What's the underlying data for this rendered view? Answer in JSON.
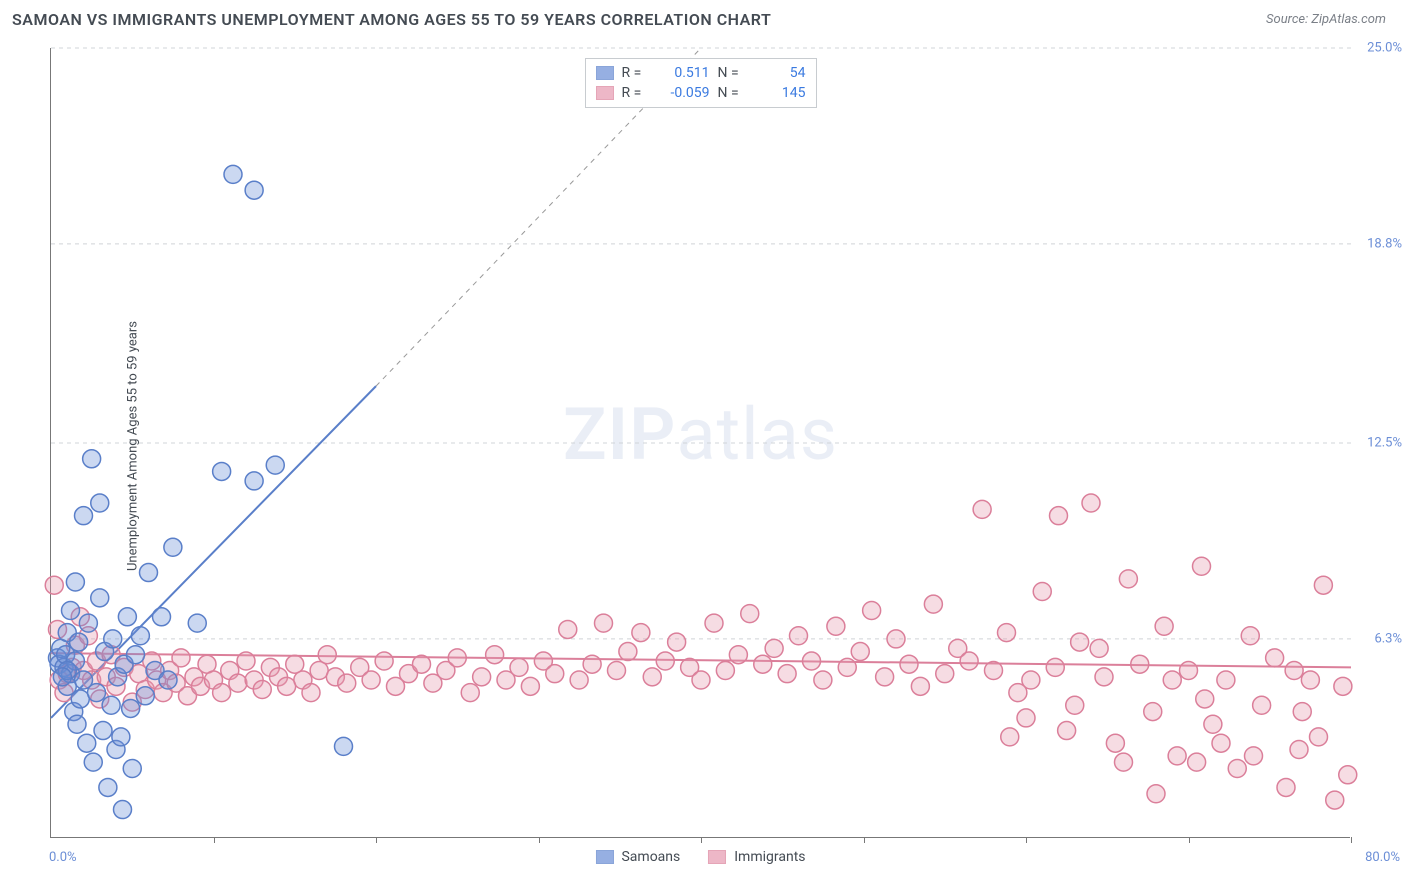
{
  "title": "SAMOAN VS IMMIGRANTS UNEMPLOYMENT AMONG AGES 55 TO 59 YEARS CORRELATION CHART",
  "source": "Source: ZipAtlas.com",
  "y_axis_label": "Unemployment Among Ages 55 to 59 years",
  "watermark": {
    "bold": "ZIP",
    "rest": "atlas"
  },
  "chart": {
    "type": "scatter",
    "xlim": [
      0,
      80
    ],
    "ylim": [
      0,
      25
    ],
    "x_ticks": [
      10,
      20,
      30,
      40,
      50,
      60,
      70,
      80
    ],
    "y_ticks": [
      6.3,
      12.5,
      18.8,
      25.0
    ],
    "y_tick_labels": [
      "6.3%",
      "12.5%",
      "18.8%",
      "25.0%"
    ],
    "xlim_labels": [
      "0.0%",
      "80.0%"
    ],
    "grid_color": "#d0d4d8",
    "background_color": "#ffffff",
    "axis_color": "#777777",
    "tick_label_color": "#6b8ed6",
    "marker_radius": 9,
    "marker_stroke_width": 1.5,
    "marker_fill_opacity": 0.35,
    "trend_line_width": 2,
    "trend_dash_width": 1,
    "series": [
      {
        "name": "Samoans",
        "color": "#6b8ed6",
        "stroke": "#5a7fc9",
        "R": "0.511",
        "N": "54",
        "trend": {
          "x1": 0,
          "y1": 3.8,
          "x2": 20,
          "y2": 14.3,
          "dash_x2": 40,
          "dash_y2": 25.0
        },
        "points": [
          [
            0.4,
            5.7
          ],
          [
            0.5,
            5.5
          ],
          [
            0.6,
            6.0
          ],
          [
            0.8,
            5.4
          ],
          [
            0.9,
            5.8
          ],
          [
            1.0,
            4.8
          ],
          [
            1.0,
            6.5
          ],
          [
            1.2,
            5.2
          ],
          [
            1.2,
            7.2
          ],
          [
            1.4,
            4.0
          ],
          [
            1.5,
            5.6
          ],
          [
            1.5,
            8.1
          ],
          [
            1.6,
            3.6
          ],
          [
            1.7,
            6.2
          ],
          [
            1.8,
            4.4
          ],
          [
            2.0,
            5.0
          ],
          [
            2.0,
            10.2
          ],
          [
            2.2,
            3.0
          ],
          [
            2.3,
            6.8
          ],
          [
            2.5,
            12.0
          ],
          [
            2.6,
            2.4
          ],
          [
            2.8,
            4.6
          ],
          [
            3.0,
            7.6
          ],
          [
            3.0,
            10.6
          ],
          [
            3.2,
            3.4
          ],
          [
            3.3,
            5.9
          ],
          [
            3.5,
            1.6
          ],
          [
            3.7,
            4.2
          ],
          [
            3.8,
            6.3
          ],
          [
            4.0,
            2.8
          ],
          [
            4.1,
            5.1
          ],
          [
            4.3,
            3.2
          ],
          [
            4.4,
            0.9
          ],
          [
            4.5,
            5.5
          ],
          [
            4.7,
            7.0
          ],
          [
            4.9,
            4.1
          ],
          [
            5.0,
            2.2
          ],
          [
            5.2,
            5.8
          ],
          [
            5.5,
            6.4
          ],
          [
            5.8,
            4.5
          ],
          [
            6.0,
            8.4
          ],
          [
            6.4,
            5.3
          ],
          [
            6.8,
            7.0
          ],
          [
            7.2,
            5.0
          ],
          [
            7.5,
            9.2
          ],
          [
            9.0,
            6.8
          ],
          [
            10.5,
            11.6
          ],
          [
            11.2,
            21.0
          ],
          [
            12.5,
            20.5
          ],
          [
            12.5,
            11.3
          ],
          [
            13.8,
            11.8
          ],
          [
            18.0,
            2.9
          ],
          [
            1.0,
            5.3
          ],
          [
            0.7,
            5.1
          ]
        ]
      },
      {
        "name": "Immigrants",
        "color": "#e69ab0",
        "stroke": "#db7f9a",
        "R": "-0.059",
        "N": "145",
        "trend": {
          "x1": 0,
          "y1": 5.85,
          "x2": 80,
          "y2": 5.4
        },
        "points": [
          [
            0.2,
            8.0
          ],
          [
            0.4,
            6.6
          ],
          [
            0.5,
            5.0
          ],
          [
            0.8,
            4.6
          ],
          [
            1.0,
            5.2
          ],
          [
            1.3,
            5.4
          ],
          [
            1.5,
            6.1
          ],
          [
            1.8,
            7.0
          ],
          [
            2.0,
            5.3
          ],
          [
            2.3,
            6.4
          ],
          [
            2.5,
            5.0
          ],
          [
            2.8,
            5.6
          ],
          [
            3.0,
            4.4
          ],
          [
            3.4,
            5.1
          ],
          [
            3.7,
            5.8
          ],
          [
            4.0,
            4.8
          ],
          [
            4.5,
            5.4
          ],
          [
            5.0,
            4.3
          ],
          [
            5.4,
            5.2
          ],
          [
            5.8,
            4.7
          ],
          [
            6.2,
            5.6
          ],
          [
            6.5,
            5.0
          ],
          [
            6.9,
            4.6
          ],
          [
            7.3,
            5.3
          ],
          [
            7.7,
            4.9
          ],
          [
            8.0,
            5.7
          ],
          [
            8.4,
            4.5
          ],
          [
            8.8,
            5.1
          ],
          [
            9.2,
            4.8
          ],
          [
            9.6,
            5.5
          ],
          [
            10.0,
            5.0
          ],
          [
            10.5,
            4.6
          ],
          [
            11.0,
            5.3
          ],
          [
            11.5,
            4.9
          ],
          [
            12.0,
            5.6
          ],
          [
            12.5,
            5.0
          ],
          [
            13.0,
            4.7
          ],
          [
            13.5,
            5.4
          ],
          [
            14.0,
            5.1
          ],
          [
            14.5,
            4.8
          ],
          [
            15.0,
            5.5
          ],
          [
            15.5,
            5.0
          ],
          [
            16.0,
            4.6
          ],
          [
            16.5,
            5.3
          ],
          [
            17.0,
            5.8
          ],
          [
            17.5,
            5.1
          ],
          [
            18.2,
            4.9
          ],
          [
            19.0,
            5.4
          ],
          [
            19.7,
            5.0
          ],
          [
            20.5,
            5.6
          ],
          [
            21.2,
            4.8
          ],
          [
            22.0,
            5.2
          ],
          [
            22.8,
            5.5
          ],
          [
            23.5,
            4.9
          ],
          [
            24.3,
            5.3
          ],
          [
            25.0,
            5.7
          ],
          [
            25.8,
            4.6
          ],
          [
            26.5,
            5.1
          ],
          [
            27.3,
            5.8
          ],
          [
            28.0,
            5.0
          ],
          [
            28.8,
            5.4
          ],
          [
            29.5,
            4.8
          ],
          [
            30.3,
            5.6
          ],
          [
            31.0,
            5.2
          ],
          [
            31.8,
            6.6
          ],
          [
            32.5,
            5.0
          ],
          [
            33.3,
            5.5
          ],
          [
            34.0,
            6.8
          ],
          [
            34.8,
            5.3
          ],
          [
            35.5,
            5.9
          ],
          [
            36.3,
            6.5
          ],
          [
            37.0,
            5.1
          ],
          [
            37.8,
            5.6
          ],
          [
            38.5,
            6.2
          ],
          [
            39.3,
            5.4
          ],
          [
            40.0,
            5.0
          ],
          [
            40.8,
            6.8
          ],
          [
            41.5,
            5.3
          ],
          [
            42.3,
            5.8
          ],
          [
            43.0,
            7.1
          ],
          [
            43.8,
            5.5
          ],
          [
            44.5,
            6.0
          ],
          [
            45.3,
            5.2
          ],
          [
            46.0,
            6.4
          ],
          [
            46.8,
            5.6
          ],
          [
            47.5,
            5.0
          ],
          [
            48.3,
            6.7
          ],
          [
            49.0,
            5.4
          ],
          [
            49.8,
            5.9
          ],
          [
            50.5,
            7.2
          ],
          [
            51.3,
            5.1
          ],
          [
            52.0,
            6.3
          ],
          [
            52.8,
            5.5
          ],
          [
            53.5,
            4.8
          ],
          [
            54.3,
            7.4
          ],
          [
            55.0,
            5.2
          ],
          [
            55.8,
            6.0
          ],
          [
            56.5,
            5.6
          ],
          [
            57.3,
            10.4
          ],
          [
            58.0,
            5.3
          ],
          [
            58.8,
            6.5
          ],
          [
            59.5,
            4.6
          ],
          [
            60.3,
            5.0
          ],
          [
            61.0,
            7.8
          ],
          [
            61.8,
            5.4
          ],
          [
            62.5,
            3.4
          ],
          [
            63.3,
            6.2
          ],
          [
            64.0,
            10.6
          ],
          [
            64.8,
            5.1
          ],
          [
            65.5,
            3.0
          ],
          [
            66.3,
            8.2
          ],
          [
            67.0,
            5.5
          ],
          [
            67.8,
            4.0
          ],
          [
            68.5,
            6.7
          ],
          [
            69.3,
            2.6
          ],
          [
            70.0,
            5.3
          ],
          [
            70.8,
            8.6
          ],
          [
            71.5,
            3.6
          ],
          [
            72.3,
            5.0
          ],
          [
            73.0,
            2.2
          ],
          [
            73.8,
            6.4
          ],
          [
            74.5,
            4.2
          ],
          [
            75.3,
            5.7
          ],
          [
            76.0,
            1.6
          ],
          [
            76.8,
            2.8
          ],
          [
            77.5,
            5.0
          ],
          [
            78.3,
            8.0
          ],
          [
            79.0,
            1.2
          ],
          [
            79.5,
            4.8
          ],
          [
            79.8,
            2.0
          ],
          [
            70.5,
            2.4
          ],
          [
            72.0,
            3.0
          ],
          [
            66.0,
            2.4
          ],
          [
            63.0,
            4.2
          ],
          [
            60.0,
            3.8
          ],
          [
            71.0,
            4.4
          ],
          [
            68.0,
            1.4
          ],
          [
            64.5,
            6.0
          ],
          [
            76.5,
            5.3
          ],
          [
            74.0,
            2.6
          ],
          [
            77.0,
            4.0
          ],
          [
            78.0,
            3.2
          ],
          [
            69.0,
            5.0
          ],
          [
            62.0,
            10.2
          ],
          [
            59.0,
            3.2
          ]
        ]
      }
    ]
  },
  "legend": {
    "series1_label": "Samoans",
    "series2_label": "Immigrants"
  },
  "stats_labels": {
    "R": "R =",
    "N": "N ="
  }
}
